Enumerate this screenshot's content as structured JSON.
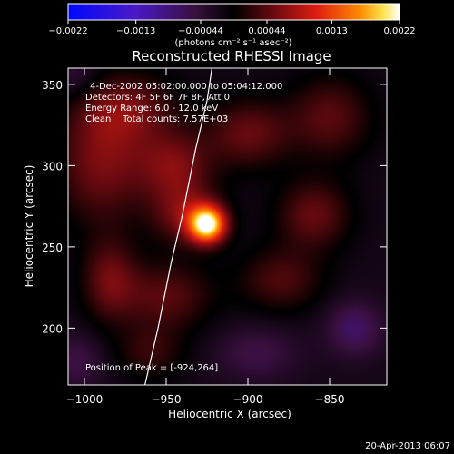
{
  "chart_data": {
    "type": "heatmap",
    "title": "Reconstructed RHESSI Image",
    "xlabel": "Heliocentric X (arcsec)",
    "ylabel": "Heliocentric Y (arcsec)",
    "xlim": [
      -1010,
      -815
    ],
    "ylim": [
      165,
      360
    ],
    "xticks": [
      -1000,
      -950,
      -900,
      -850
    ],
    "xtick_labels": [
      "−1000",
      "−950",
      "−900",
      "−850"
    ],
    "yticks": [
      200,
      250,
      300,
      350
    ],
    "ytick_labels": [
      "200",
      "250",
      "300",
      "350"
    ],
    "colorbar": {
      "range": [
        -0.0022,
        0.0022
      ],
      "ticks": [
        -0.0022,
        -0.0013,
        -0.00044,
        0.00044,
        0.0013,
        0.0022
      ],
      "tick_labels": [
        "−0.0022",
        "−0.0013",
        "−0.00044",
        "0.00044",
        "0.0013",
        "0.0022"
      ],
      "unit_label": "(photons cm⁻² s⁻¹ asec⁻²)",
      "colormap": "rainbow-diverging (blue-purple-black-red-yellow-white)"
    },
    "annotations": {
      "time_range": "4-Dec-2002 05:02:00.000 to 05:04:12.000",
      "detectors": "Detectors: 4F 5F 6F 7F 8F, Att 0",
      "energy": "Energy Range: 6.0 - 12.0 keV",
      "clean": "Clean    Total counts: 7.57E+03",
      "peak": "Position of Peak = [-924,264]"
    },
    "peak": {
      "x": -924,
      "y": 264
    },
    "limb_curve": [
      [
        -963,
        165
      ],
      [
        -955,
        200
      ],
      [
        -947,
        240
      ],
      [
        -940,
        270
      ],
      [
        -932,
        310
      ],
      [
        -925,
        340
      ],
      [
        -922,
        360
      ]
    ],
    "blobs": [
      {
        "x": -925,
        "y": 264,
        "sx": 8,
        "sy": 8,
        "amp": 1.8
      },
      {
        "x": -938,
        "y": 270,
        "sx": 15,
        "sy": 13,
        "amp": 0.6
      },
      {
        "x": -990,
        "y": 300,
        "sx": 20,
        "sy": 25,
        "amp": 0.6
      },
      {
        "x": -975,
        "y": 335,
        "sx": 22,
        "sy": 16,
        "amp": 0.55
      },
      {
        "x": -945,
        "y": 300,
        "sx": 16,
        "sy": 15,
        "amp": 0.6
      },
      {
        "x": -900,
        "y": 320,
        "sx": 18,
        "sy": 15,
        "amp": 0.55
      },
      {
        "x": -850,
        "y": 330,
        "sx": 18,
        "sy": 18,
        "amp": 0.5
      },
      {
        "x": -860,
        "y": 270,
        "sx": 16,
        "sy": 15,
        "amp": 0.55
      },
      {
        "x": -880,
        "y": 230,
        "sx": 18,
        "sy": 14,
        "amp": 0.45
      },
      {
        "x": -950,
        "y": 220,
        "sx": 20,
        "sy": 15,
        "amp": 0.5
      },
      {
        "x": -985,
        "y": 230,
        "sx": 12,
        "sy": 18,
        "amp": 0.55
      },
      {
        "x": -960,
        "y": 185,
        "sx": 15,
        "sy": 12,
        "amp": 0.35
      },
      {
        "x": -835,
        "y": 200,
        "sx": 12,
        "sy": 12,
        "amp": -0.45
      },
      {
        "x": -895,
        "y": 185,
        "sx": 18,
        "sy": 12,
        "amp": -0.3
      },
      {
        "x": -1005,
        "y": 180,
        "sx": 12,
        "sy": 12,
        "amp": -0.3
      },
      {
        "x": -1005,
        "y": 355,
        "sx": 10,
        "sy": 10,
        "amp": -0.25
      }
    ]
  },
  "footer": {
    "timestamp": "20-Apr-2013 06:07"
  }
}
